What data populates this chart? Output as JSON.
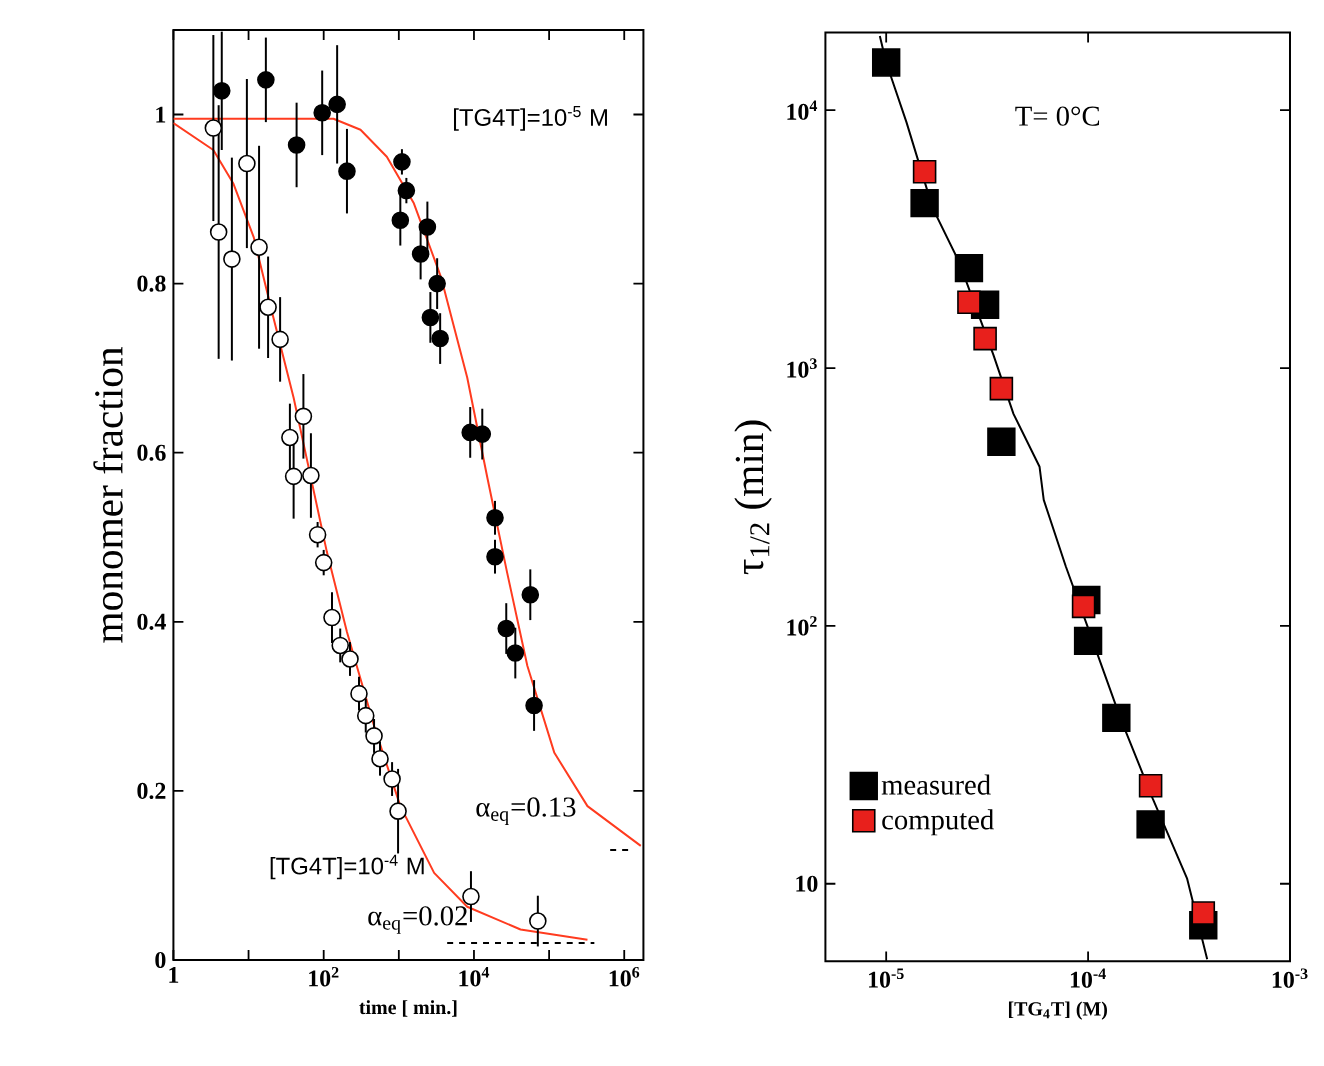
{
  "chart_data": [
    {
      "type": "scatter",
      "xlabel": "time [ min.]",
      "ylabel": "monomer fraction",
      "log": "x",
      "xlim": [
        1,
        1800000
      ],
      "ylim": [
        0,
        1.1
      ],
      "xticks": [
        1,
        {
          "value": 10,
          "label": null
        },
        {
          "value": 100,
          "label": "10$^{2}$"
        },
        {
          "value": 1000,
          "label": null
        },
        {
          "value": 10000,
          "label": "10$^{4}$"
        },
        {
          "value": 100000,
          "label": null
        },
        {
          "value": 1000000,
          "label": "10$^{6}$"
        }
      ],
      "yticks": [
        0,
        0.2,
        0.4,
        0.6,
        0.8,
        1
      ],
      "annotations": [
        "[TG4T]=10$^{-5}$ M",
        "α$_{eq}$=0.13",
        "[TG4T]=10$^{-4}$ M",
        "α$_{eq}$=0.02"
      ],
      "series": [
        {
          "type": "line",
          "color": "#ff3b1f",
          "x": [
            1,
            3.4,
            6.3,
            11.7,
            21.4,
            39.8,
            74,
            110,
            204,
            468,
            1047,
            2950,
            8130,
            41700,
            324000
          ],
          "values": [
            0.99,
            0.958,
            0.918,
            0.855,
            0.76,
            0.665,
            0.554,
            0.483,
            0.388,
            0.277,
            0.182,
            0.103,
            0.063,
            0.036,
            0.024
          ]
        },
        {
          "type": "line",
          "color": "#ff3b1f",
          "x": [
            1,
            135,
            309,
            692,
            1585,
            3631,
            8130,
            15100,
            27500,
            51300,
            117500,
            324000,
            1660000
          ],
          "values": [
            0.995,
            0.995,
            0.982,
            0.95,
            0.895,
            0.808,
            0.689,
            0.57,
            0.459,
            0.348,
            0.245,
            0.182,
            0.135
          ]
        },
        {
          "type": "line",
          "color": "#000000",
          "line_style": "dashed",
          "x": [
            4400,
            400000
          ],
          "values": [
            0.02,
            0.02
          ]
        },
        {
          "type": "line",
          "color": "#000000",
          "line_style": "dashed",
          "x": [
            650000,
            1230000
          ],
          "values": [
            0.13,
            0.13
          ]
        },
        {
          "color": "#ffffff",
          "marker": "circle",
          "x": [
            3.4,
            4.0,
            6.0,
            9.5,
            13.8,
            18.2,
            26.3,
            35.5,
            53.7,
            39.8,
            67.6,
            83,
            100,
            129,
            166,
            224,
            295,
            363,
            468,
            562,
            813,
            977,
            9120,
            70800
          ],
          "values": [
            0.984,
            0.861,
            0.829,
            0.942,
            0.843,
            0.772,
            0.734,
            0.618,
            0.643,
            0.572,
            0.573,
            0.503,
            0.47,
            0.405,
            0.372,
            0.356,
            0.315,
            0.289,
            0.265,
            0.238,
            0.214,
            0.176,
            0.075,
            0.046
          ],
          "errors": [
            0.11,
            0.15,
            0.12,
            0.1,
            0.12,
            0.06,
            0.05,
            0.04,
            0.05,
            0.05,
            0.05,
            0.015,
            0.015,
            0.03,
            0.02,
            0.02,
            0.02,
            0.02,
            0.02,
            0.02,
            0.02,
            0.05,
            0.03,
            0.03
          ]
        },
        {
          "color": "#000000",
          "marker": "circle",
          "x": [
            4.4,
            17,
            43.6,
            95.5,
            151,
            204,
            1100,
            1260,
            1047,
            2399,
            1950,
            3236,
            2630,
            3548,
            8913,
            12900,
            19050,
            19050,
            56200,
            26900,
            35500,
            63100
          ],
          "values": [
            1.028,
            1.041,
            0.964,
            1.002,
            1.012,
            0.933,
            0.944,
            0.91,
            0.875,
            0.867,
            0.835,
            0.8,
            0.76,
            0.735,
            0.624,
            0.622,
            0.523,
            0.477,
            0.432,
            0.392,
            0.363,
            0.301
          ],
          "errors": [
            0.07,
            0.05,
            0.05,
            0.05,
            0.07,
            0.05,
            0.015,
            0.015,
            0.03,
            0.03,
            0.03,
            0.03,
            0.03,
            0.03,
            0.03,
            0.03,
            0.02,
            0.02,
            0.03,
            0.03,
            0.03,
            0.03
          ]
        }
      ]
    },
    {
      "type": "scatter",
      "xlabel": "[TG$_{4}$T]   (M)",
      "ylabel": "τ$_{1/2}$ (min)",
      "log": "xy",
      "legend": "bottom left",
      "xlim": [
        5e-06,
        0.001
      ],
      "ylim": [
        5,
        20000
      ],
      "xticks": [
        {
          "value": 1e-05,
          "label": "10$^{-5}$"
        },
        {
          "value": 0.0001,
          "label": "10$^{-4}$"
        },
        {
          "value": 0.001,
          "label": "10$^{-3}$"
        }
      ],
      "yticks": [
        10,
        {
          "value": 100,
          "label": "10$^{2}$"
        },
        {
          "value": 1000,
          "label": "10$^{3}$"
        },
        {
          "value": 10000,
          "label": "10$^{4}$"
        }
      ],
      "annotations": [
        "T= 0°C"
      ],
      "series": [
        {
          "type": "line",
          "color": "#000000",
          "x": [
            9.3e-06,
            1e-05,
            1.26e-05,
            1.7e-05,
            2.29e-05,
            3.39e-05,
            4.27e-05,
            5.75e-05,
            6.03e-05,
            7.76e-05,
            0.000102,
            0.000145,
            0.000209,
            0.000309,
            0.000389
          ],
          "values": [
            19400,
            15300,
            8990,
            4170,
            2590,
            1130,
            664,
            414,
            308,
            170,
            94,
            43.6,
            21.4,
            10.5,
            5.1
          ]
        },
        {
          "name": "measured",
          "color": "#000000",
          "marker": "square",
          "x": [
            1e-05,
            1.55e-05,
            2.57e-05,
            3.09e-05,
            3.72e-05,
            9.8e-05,
            0.0001,
            0.000138,
            0.000204,
            0.000372
          ],
          "values": [
            15300,
            4360,
            2440,
            1760,
            518,
            126,
            87.5,
            44,
            17,
            6.9
          ]
        },
        {
          "name": "computed",
          "color": "#e8201c",
          "marker": "square",
          "x": [
            1.55e-05,
            2.57e-05,
            3.09e-05,
            3.72e-05,
            9.5e-05,
            0.000204,
            0.000372
          ],
          "values": [
            5770,
            1800,
            1300,
            832,
            119,
            24,
            7.7
          ]
        }
      ]
    }
  ]
}
